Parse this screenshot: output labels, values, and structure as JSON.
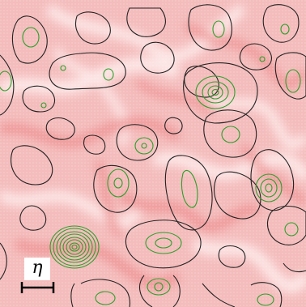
{
  "figure": {
    "scale_bar_label": "η",
    "colors": {
      "background_field": "#f7c8c8",
      "dark_field": "#ee9494",
      "light_field": "#fde6e6",
      "outer_contour": "#222222",
      "inner_contour": "#2aa02a",
      "scale_bar": "#000000"
    }
  }
}
